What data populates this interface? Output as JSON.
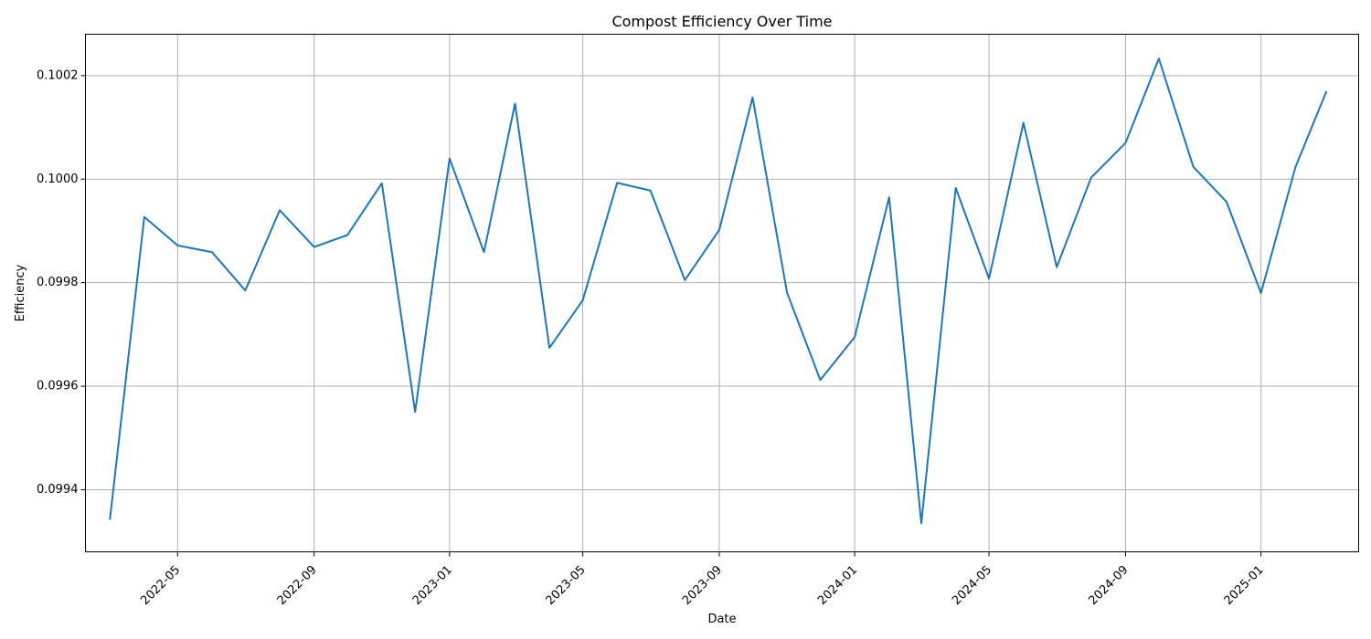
{
  "chart_data": {
    "type": "line",
    "title": "Compost Efficiency Over Time",
    "xlabel": "Date",
    "ylabel": "Efficiency",
    "grid": true,
    "line_color": "#1f77b4",
    "xlim": [
      "2022-02-07",
      "2025-03-30"
    ],
    "ylim": [
      0.09928,
      0.10028
    ],
    "x_ticks": [
      "2022-05-01",
      "2022-09-01",
      "2023-01-01",
      "2023-05-01",
      "2023-09-01",
      "2024-01-01",
      "2024-05-01",
      "2024-09-01",
      "2025-01-01"
    ],
    "x_tick_labels": [
      "2022-05",
      "2022-09",
      "2023-01",
      "2023-05",
      "2023-09",
      "2024-01",
      "2024-05",
      "2024-09",
      "2025-01"
    ],
    "y_ticks": [
      0.0994,
      0.0996,
      0.0998,
      0.1,
      0.1002
    ],
    "y_tick_labels": [
      "0.0994",
      "0.0996",
      "0.0998",
      "0.1000",
      "0.1002"
    ],
    "series": [
      {
        "x": [
          "2022-03-01",
          "2022-04-01",
          "2022-05-01",
          "2022-06-01",
          "2022-07-01",
          "2022-08-01",
          "2022-09-01",
          "2022-10-01",
          "2022-11-01",
          "2022-12-01",
          "2023-01-01",
          "2023-02-01",
          "2023-03-01",
          "2023-04-01",
          "2023-05-01",
          "2023-06-01",
          "2023-07-01",
          "2023-08-01",
          "2023-09-01",
          "2023-10-01",
          "2023-11-01",
          "2023-12-01",
          "2024-01-01",
          "2024-02-01",
          "2024-03-01",
          "2024-04-01",
          "2024-05-01",
          "2024-06-01",
          "2024-07-01",
          "2024-08-01",
          "2024-09-01",
          "2024-10-01",
          "2024-11-01",
          "2024-12-01",
          "2025-01-01",
          "2025-02-01",
          "2025-03-01"
        ],
        "values": [
          0.099342,
          0.099927,
          0.099872,
          0.099859,
          0.099785,
          0.09994,
          0.099869,
          0.099892,
          0.099992,
          0.09955,
          0.10004,
          0.099859,
          0.100146,
          0.099674,
          0.099766,
          0.099993,
          0.099978,
          0.099805,
          0.099902,
          0.100158,
          0.099781,
          0.099612,
          0.099695,
          0.099965,
          0.099335,
          0.099983,
          0.099808,
          0.100109,
          0.09983,
          0.100003,
          0.10007,
          0.100233,
          0.100024,
          0.099956,
          0.09978,
          0.100023,
          0.10017
        ]
      }
    ]
  }
}
